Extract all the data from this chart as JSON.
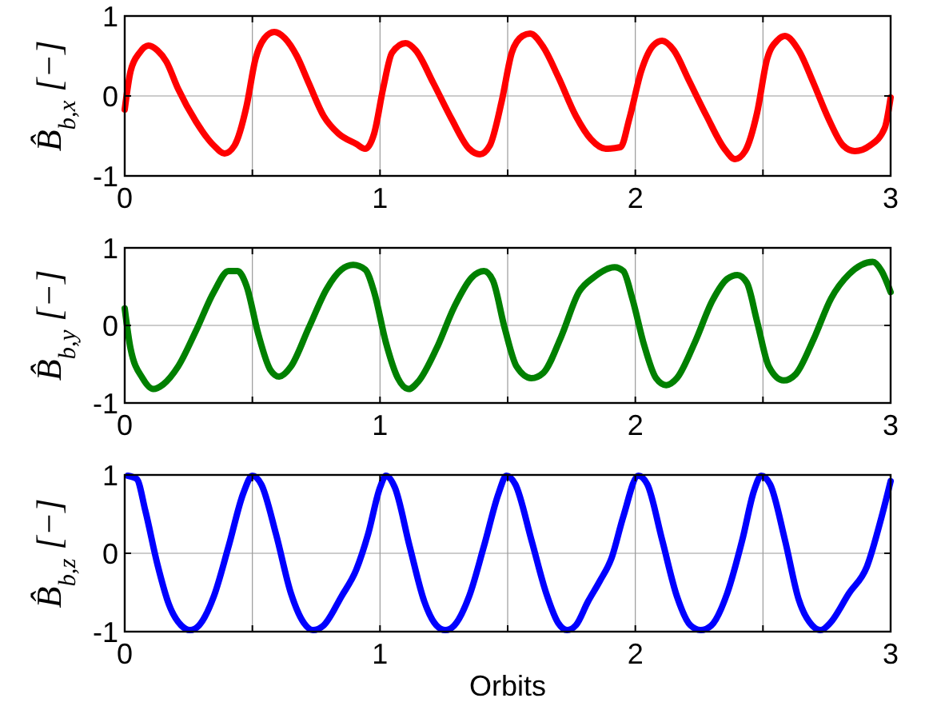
{
  "chart_data": [
    {
      "type": "line",
      "ylabel": "B̂$_{b,x}$ [−]",
      "xlim": [
        0,
        3
      ],
      "ylim": [
        -1,
        1
      ],
      "xticks": [
        0,
        {
          "value": 0.5,
          "label": null
        },
        1,
        {
          "value": 1.5,
          "label": null
        },
        2,
        {
          "value": 2.5,
          "label": null
        },
        3
      ],
      "yticks": [
        -1,
        0,
        1
      ],
      "grid": true,
      "line_style": "solid",
      "marker": "none",
      "series": [
        {
          "color": "#ff0000",
          "x": [
            0,
            0.023,
            0.058,
            0.093,
            0.128,
            0.163,
            0.209,
            0.279,
            0.349,
            0.391,
            0.43,
            0.477,
            0.512,
            0.547,
            0.586,
            0.628,
            0.674,
            0.721,
            0.779,
            0.837,
            0.907,
            0.942,
            0.977,
            1.012,
            1.047,
            1.1,
            1.14,
            1.209,
            1.279,
            1.349,
            1.391,
            1.43,
            1.477,
            1.516,
            1.558,
            1.588,
            1.64,
            1.698,
            1.767,
            1.826,
            1.884,
            1.942,
            1.977,
            2.023,
            2.07,
            2.105,
            2.151,
            2.209,
            2.279,
            2.349,
            2.391,
            2.43,
            2.477,
            2.516,
            2.558,
            2.586,
            2.64,
            2.698,
            2.756,
            2.814,
            2.86,
            2.919,
            2.977,
            3
          ],
          "values": [
            -0.17,
            0.31,
            0.54,
            0.63,
            0.57,
            0.43,
            0.09,
            -0.32,
            -0.62,
            -0.72,
            -0.62,
            -0.13,
            0.46,
            0.72,
            0.8,
            0.72,
            0.5,
            0.16,
            -0.25,
            -0.47,
            -0.6,
            -0.66,
            -0.47,
            0.09,
            0.54,
            0.66,
            0.57,
            0.16,
            -0.28,
            -0.66,
            -0.73,
            -0.62,
            -0.06,
            0.54,
            0.75,
            0.78,
            0.61,
            0.24,
            -0.25,
            -0.54,
            -0.66,
            -0.64,
            -0.28,
            0.31,
            0.63,
            0.69,
            0.57,
            0.2,
            -0.25,
            -0.66,
            -0.79,
            -0.69,
            -0.21,
            0.46,
            0.7,
            0.75,
            0.57,
            0.16,
            -0.28,
            -0.62,
            -0.69,
            -0.62,
            -0.4,
            -0.02
          ]
        }
      ]
    },
    {
      "type": "line",
      "ylabel": "B̂$_{b,y}$ [−]",
      "xlim": [
        0,
        3
      ],
      "ylim": [
        -1,
        1
      ],
      "xticks": [
        0,
        {
          "value": 0.5,
          "label": null
        },
        1,
        {
          "value": 1.5,
          "label": null
        },
        2,
        {
          "value": 2.5,
          "label": null
        },
        3
      ],
      "yticks": [
        -1,
        0,
        1
      ],
      "grid": true,
      "line_style": "solid",
      "marker": "none",
      "series": [
        {
          "color": "#008000",
          "x": [
            0,
            0.023,
            0.07,
            0.112,
            0.151,
            0.209,
            0.279,
            0.349,
            0.407,
            0.442,
            0.477,
            0.523,
            0.57,
            0.605,
            0.651,
            0.721,
            0.791,
            0.849,
            0.895,
            0.942,
            0.977,
            1.023,
            1.07,
            1.112,
            1.151,
            1.221,
            1.291,
            1.36,
            1.407,
            1.442,
            1.488,
            1.535,
            1.593,
            1.64,
            1.709,
            1.779,
            1.837,
            1.919,
            1.953,
            1.988,
            2.035,
            2.081,
            2.121,
            2.163,
            2.233,
            2.302,
            2.36,
            2.4,
            2.437,
            2.477,
            2.523,
            2.581,
            2.628,
            2.698,
            2.767,
            2.837,
            2.93,
            2.965,
            3
          ],
          "values": [
            0.22,
            -0.3,
            -0.68,
            -0.82,
            -0.76,
            -0.53,
            -0.07,
            0.43,
            0.7,
            0.7,
            0.51,
            -0.11,
            -0.57,
            -0.66,
            -0.53,
            -0.03,
            0.47,
            0.72,
            0.78,
            0.72,
            0.43,
            -0.22,
            -0.68,
            -0.82,
            -0.72,
            -0.3,
            0.24,
            0.62,
            0.7,
            0.58,
            -0.03,
            -0.53,
            -0.68,
            -0.61,
            -0.15,
            0.43,
            0.62,
            0.75,
            0.7,
            0.35,
            -0.26,
            -0.68,
            -0.77,
            -0.68,
            -0.22,
            0.32,
            0.6,
            0.65,
            0.55,
            0.05,
            -0.53,
            -0.71,
            -0.63,
            -0.18,
            0.35,
            0.66,
            0.82,
            0.7,
            0.43
          ]
        }
      ]
    },
    {
      "type": "line",
      "ylabel": "B̂$_{b,z}$ [−]",
      "xlabel": "Orbits",
      "xlim": [
        0,
        3
      ],
      "ylim": [
        -1,
        1
      ],
      "xticks": [
        0,
        {
          "value": 0.5,
          "label": null
        },
        1,
        {
          "value": 1.5,
          "label": null
        },
        2,
        {
          "value": 2.5,
          "label": null
        },
        3
      ],
      "yticks": [
        -1,
        0,
        1
      ],
      "grid": true,
      "line_style": "solid",
      "marker": "none",
      "series": [
        {
          "color": "#0000ff",
          "x": [
            0.012,
            0.047,
            0.081,
            0.128,
            0.174,
            0.221,
            0.256,
            0.291,
            0.349,
            0.407,
            0.465,
            0.5,
            0.535,
            0.593,
            0.651,
            0.702,
            0.737,
            0.779,
            0.849,
            0.907,
            0.953,
            1,
            1.023,
            1.058,
            1.116,
            1.174,
            1.221,
            1.256,
            1.291,
            1.349,
            1.407,
            1.465,
            1.495,
            1.53,
            1.593,
            1.651,
            1.698,
            1.733,
            1.767,
            1.814,
            1.86,
            1.907,
            1.953,
            2.012,
            2.047,
            2.105,
            2.163,
            2.216,
            2.256,
            2.298,
            2.36,
            2.419,
            2.465,
            2.493,
            2.528,
            2.586,
            2.64,
            2.693,
            2.726,
            2.763,
            2.837,
            2.907,
            2.965,
            3
          ],
          "values": [
            0.99,
            0.95,
            0.54,
            -0.14,
            -0.66,
            -0.92,
            -0.98,
            -0.92,
            -0.55,
            0.09,
            0.77,
            0.99,
            0.88,
            0.24,
            -0.51,
            -0.89,
            -0.98,
            -0.92,
            -0.55,
            -0.21,
            0.24,
            0.84,
            0.99,
            0.84,
            0.09,
            -0.62,
            -0.92,
            -0.98,
            -0.92,
            -0.55,
            0.09,
            0.77,
            0.99,
            0.88,
            0.17,
            -0.51,
            -0.89,
            -0.98,
            -0.92,
            -0.62,
            -0.36,
            -0.06,
            0.47,
            0.99,
            0.88,
            0.17,
            -0.55,
            -0.92,
            -0.98,
            -0.92,
            -0.51,
            0.17,
            0.8,
            0.99,
            0.88,
            0.17,
            -0.59,
            -0.92,
            -0.98,
            -0.89,
            -0.51,
            -0.17,
            0.47,
            0.92
          ]
        }
      ]
    }
  ]
}
